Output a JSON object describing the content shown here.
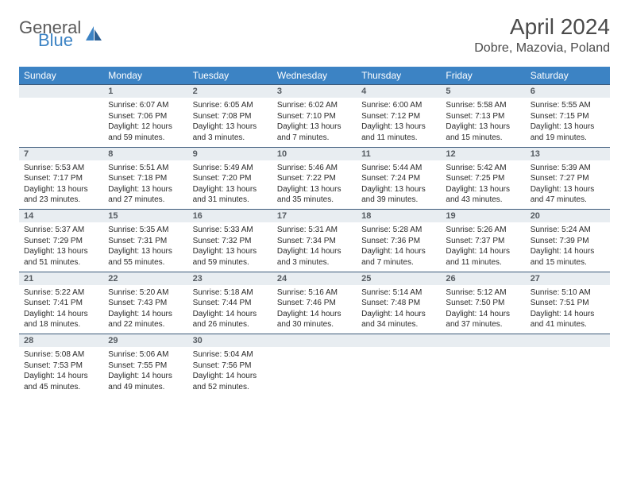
{
  "logo": {
    "general": "General",
    "blue": "Blue"
  },
  "title": "April 2024",
  "location": "Dobre, Mazovia, Poland",
  "columns": [
    "Sunday",
    "Monday",
    "Tuesday",
    "Wednesday",
    "Thursday",
    "Friday",
    "Saturday"
  ],
  "colors": {
    "header_bg": "#3c83c4",
    "daynum_bg": "#e8edf1",
    "rule": "#3c5a7a",
    "logo_gray": "#5a5a5a",
    "logo_blue": "#3c83c4"
  },
  "weeks": [
    [
      {
        "num": "",
        "sr": "",
        "ss": "",
        "dl": ""
      },
      {
        "num": "1",
        "sr": "Sunrise: 6:07 AM",
        "ss": "Sunset: 7:06 PM",
        "dl": "Daylight: 12 hours and 59 minutes."
      },
      {
        "num": "2",
        "sr": "Sunrise: 6:05 AM",
        "ss": "Sunset: 7:08 PM",
        "dl": "Daylight: 13 hours and 3 minutes."
      },
      {
        "num": "3",
        "sr": "Sunrise: 6:02 AM",
        "ss": "Sunset: 7:10 PM",
        "dl": "Daylight: 13 hours and 7 minutes."
      },
      {
        "num": "4",
        "sr": "Sunrise: 6:00 AM",
        "ss": "Sunset: 7:12 PM",
        "dl": "Daylight: 13 hours and 11 minutes."
      },
      {
        "num": "5",
        "sr": "Sunrise: 5:58 AM",
        "ss": "Sunset: 7:13 PM",
        "dl": "Daylight: 13 hours and 15 minutes."
      },
      {
        "num": "6",
        "sr": "Sunrise: 5:55 AM",
        "ss": "Sunset: 7:15 PM",
        "dl": "Daylight: 13 hours and 19 minutes."
      }
    ],
    [
      {
        "num": "7",
        "sr": "Sunrise: 5:53 AM",
        "ss": "Sunset: 7:17 PM",
        "dl": "Daylight: 13 hours and 23 minutes."
      },
      {
        "num": "8",
        "sr": "Sunrise: 5:51 AM",
        "ss": "Sunset: 7:18 PM",
        "dl": "Daylight: 13 hours and 27 minutes."
      },
      {
        "num": "9",
        "sr": "Sunrise: 5:49 AM",
        "ss": "Sunset: 7:20 PM",
        "dl": "Daylight: 13 hours and 31 minutes."
      },
      {
        "num": "10",
        "sr": "Sunrise: 5:46 AM",
        "ss": "Sunset: 7:22 PM",
        "dl": "Daylight: 13 hours and 35 minutes."
      },
      {
        "num": "11",
        "sr": "Sunrise: 5:44 AM",
        "ss": "Sunset: 7:24 PM",
        "dl": "Daylight: 13 hours and 39 minutes."
      },
      {
        "num": "12",
        "sr": "Sunrise: 5:42 AM",
        "ss": "Sunset: 7:25 PM",
        "dl": "Daylight: 13 hours and 43 minutes."
      },
      {
        "num": "13",
        "sr": "Sunrise: 5:39 AM",
        "ss": "Sunset: 7:27 PM",
        "dl": "Daylight: 13 hours and 47 minutes."
      }
    ],
    [
      {
        "num": "14",
        "sr": "Sunrise: 5:37 AM",
        "ss": "Sunset: 7:29 PM",
        "dl": "Daylight: 13 hours and 51 minutes."
      },
      {
        "num": "15",
        "sr": "Sunrise: 5:35 AM",
        "ss": "Sunset: 7:31 PM",
        "dl": "Daylight: 13 hours and 55 minutes."
      },
      {
        "num": "16",
        "sr": "Sunrise: 5:33 AM",
        "ss": "Sunset: 7:32 PM",
        "dl": "Daylight: 13 hours and 59 minutes."
      },
      {
        "num": "17",
        "sr": "Sunrise: 5:31 AM",
        "ss": "Sunset: 7:34 PM",
        "dl": "Daylight: 14 hours and 3 minutes."
      },
      {
        "num": "18",
        "sr": "Sunrise: 5:28 AM",
        "ss": "Sunset: 7:36 PM",
        "dl": "Daylight: 14 hours and 7 minutes."
      },
      {
        "num": "19",
        "sr": "Sunrise: 5:26 AM",
        "ss": "Sunset: 7:37 PM",
        "dl": "Daylight: 14 hours and 11 minutes."
      },
      {
        "num": "20",
        "sr": "Sunrise: 5:24 AM",
        "ss": "Sunset: 7:39 PM",
        "dl": "Daylight: 14 hours and 15 minutes."
      }
    ],
    [
      {
        "num": "21",
        "sr": "Sunrise: 5:22 AM",
        "ss": "Sunset: 7:41 PM",
        "dl": "Daylight: 14 hours and 18 minutes."
      },
      {
        "num": "22",
        "sr": "Sunrise: 5:20 AM",
        "ss": "Sunset: 7:43 PM",
        "dl": "Daylight: 14 hours and 22 minutes."
      },
      {
        "num": "23",
        "sr": "Sunrise: 5:18 AM",
        "ss": "Sunset: 7:44 PM",
        "dl": "Daylight: 14 hours and 26 minutes."
      },
      {
        "num": "24",
        "sr": "Sunrise: 5:16 AM",
        "ss": "Sunset: 7:46 PM",
        "dl": "Daylight: 14 hours and 30 minutes."
      },
      {
        "num": "25",
        "sr": "Sunrise: 5:14 AM",
        "ss": "Sunset: 7:48 PM",
        "dl": "Daylight: 14 hours and 34 minutes."
      },
      {
        "num": "26",
        "sr": "Sunrise: 5:12 AM",
        "ss": "Sunset: 7:50 PM",
        "dl": "Daylight: 14 hours and 37 minutes."
      },
      {
        "num": "27",
        "sr": "Sunrise: 5:10 AM",
        "ss": "Sunset: 7:51 PM",
        "dl": "Daylight: 14 hours and 41 minutes."
      }
    ],
    [
      {
        "num": "28",
        "sr": "Sunrise: 5:08 AM",
        "ss": "Sunset: 7:53 PM",
        "dl": "Daylight: 14 hours and 45 minutes."
      },
      {
        "num": "29",
        "sr": "Sunrise: 5:06 AM",
        "ss": "Sunset: 7:55 PM",
        "dl": "Daylight: 14 hours and 49 minutes."
      },
      {
        "num": "30",
        "sr": "Sunrise: 5:04 AM",
        "ss": "Sunset: 7:56 PM",
        "dl": "Daylight: 14 hours and 52 minutes."
      },
      {
        "num": "",
        "sr": "",
        "ss": "",
        "dl": ""
      },
      {
        "num": "",
        "sr": "",
        "ss": "",
        "dl": ""
      },
      {
        "num": "",
        "sr": "",
        "ss": "",
        "dl": ""
      },
      {
        "num": "",
        "sr": "",
        "ss": "",
        "dl": ""
      }
    ]
  ]
}
